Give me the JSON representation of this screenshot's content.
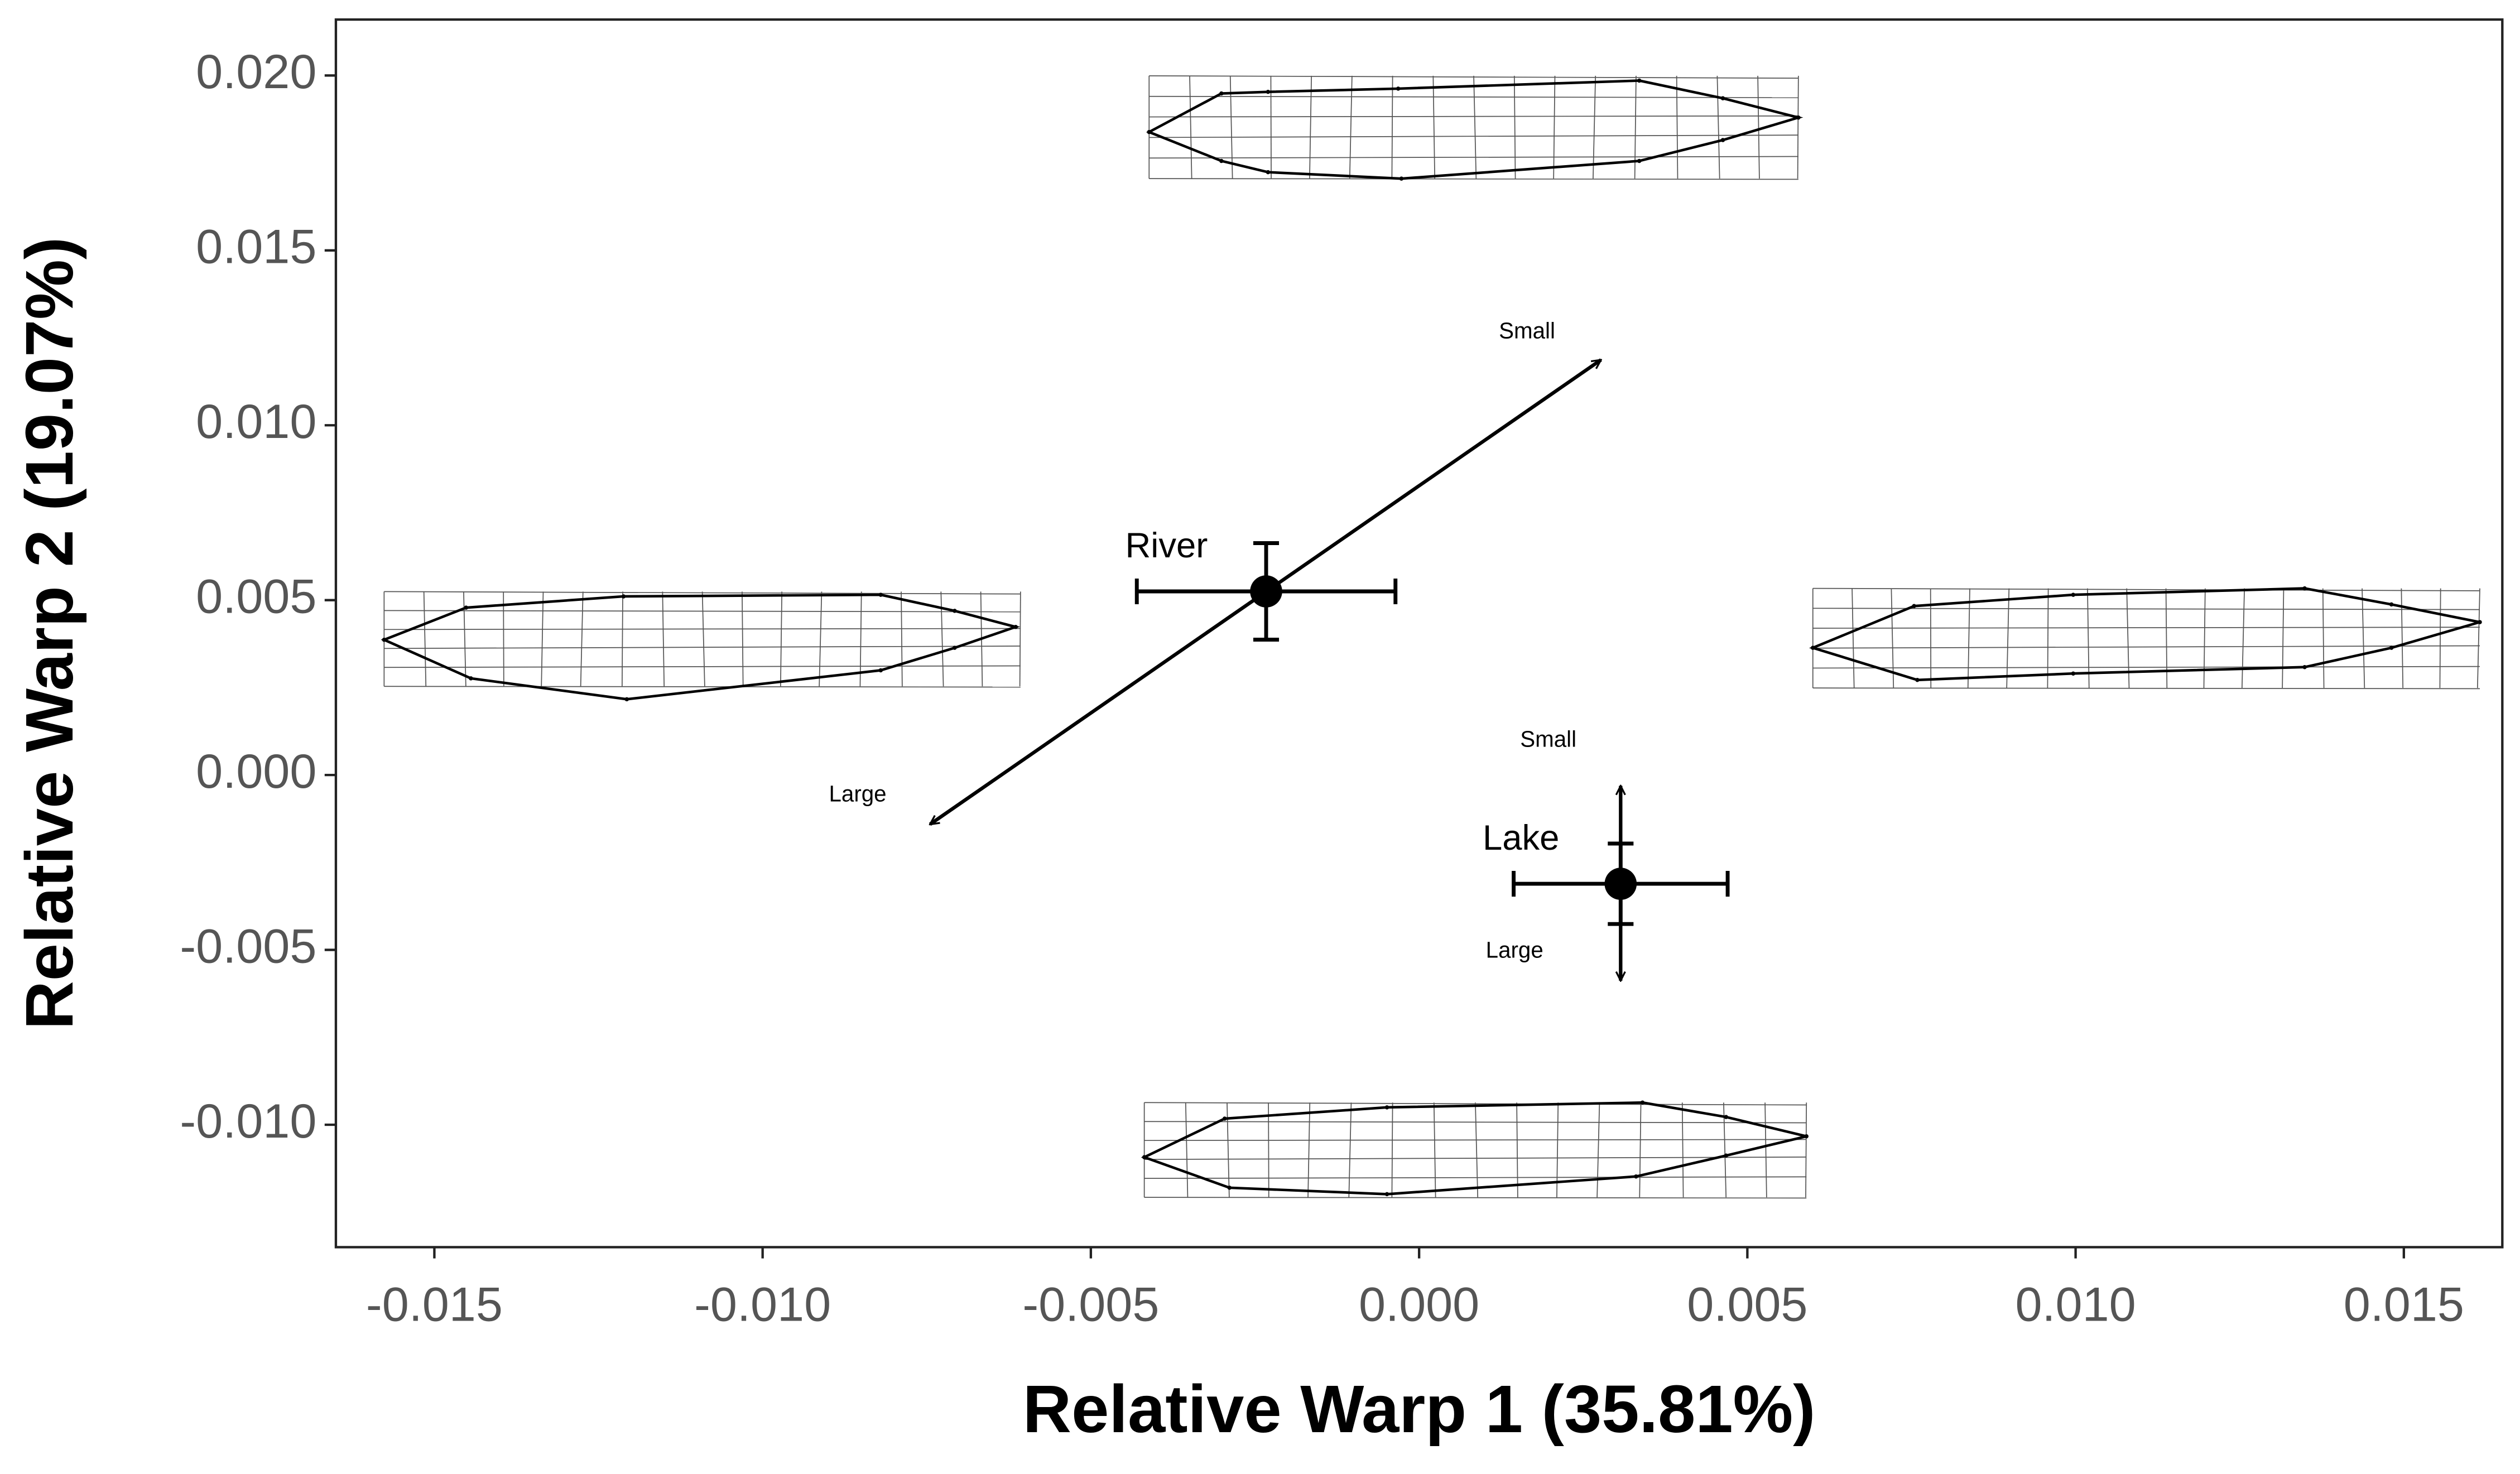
{
  "chart_data": {
    "type": "scatter",
    "xlabel": "Relative Warp 1 (35.81%)",
    "ylabel": "Relative Warp 2 (19.07%)",
    "xlim": [
      -0.0165,
      0.0165
    ],
    "ylim": [
      -0.0135,
      0.0216
    ],
    "xticks": [
      -0.015,
      {
        "value": -0.01,
        "label": "-0.010"
      },
      -0.005,
      {
        "value": 0,
        "label": "0.000"
      },
      0.005,
      {
        "value": 0.01,
        "label": "0.010"
      },
      0.015
    ],
    "yticks": [
      {
        "value": -0.01,
        "label": "-0.010"
      },
      -0.005,
      {
        "value": 0,
        "label": "0.000"
      },
      0.005,
      {
        "value": 0.01,
        "label": "0.010"
      },
      0.015,
      {
        "value": 0.02,
        "label": "0.020"
      }
    ],
    "color": "#000000",
    "series": [
      {
        "name": "River",
        "x": [
          -0.00233
        ],
        "y": [
          0.00525
        ],
        "xerr": [
          0.00197
        ],
        "yerr": [
          0.00138
        ]
      },
      {
        "name": "Lake",
        "x": [
          0.00307
        ],
        "y": [
          -0.00311
        ],
        "xerr": [
          0.00163
        ],
        "yerr": [
          0.00115
        ]
      }
    ],
    "annotations": [
      {
        "x": [
          -0.00745,
          0.00277
        ],
        "y": [
          -0.00141,
          0.01187
        ],
        "start_label": "Large",
        "end_label": "Small"
      },
      {
        "x": [
          0.00307,
          0.00307
        ],
        "y": [
          -0.00588,
          -0.00031
        ],
        "start_label": "Large",
        "end_label": "Small"
      }
    ]
  }
}
